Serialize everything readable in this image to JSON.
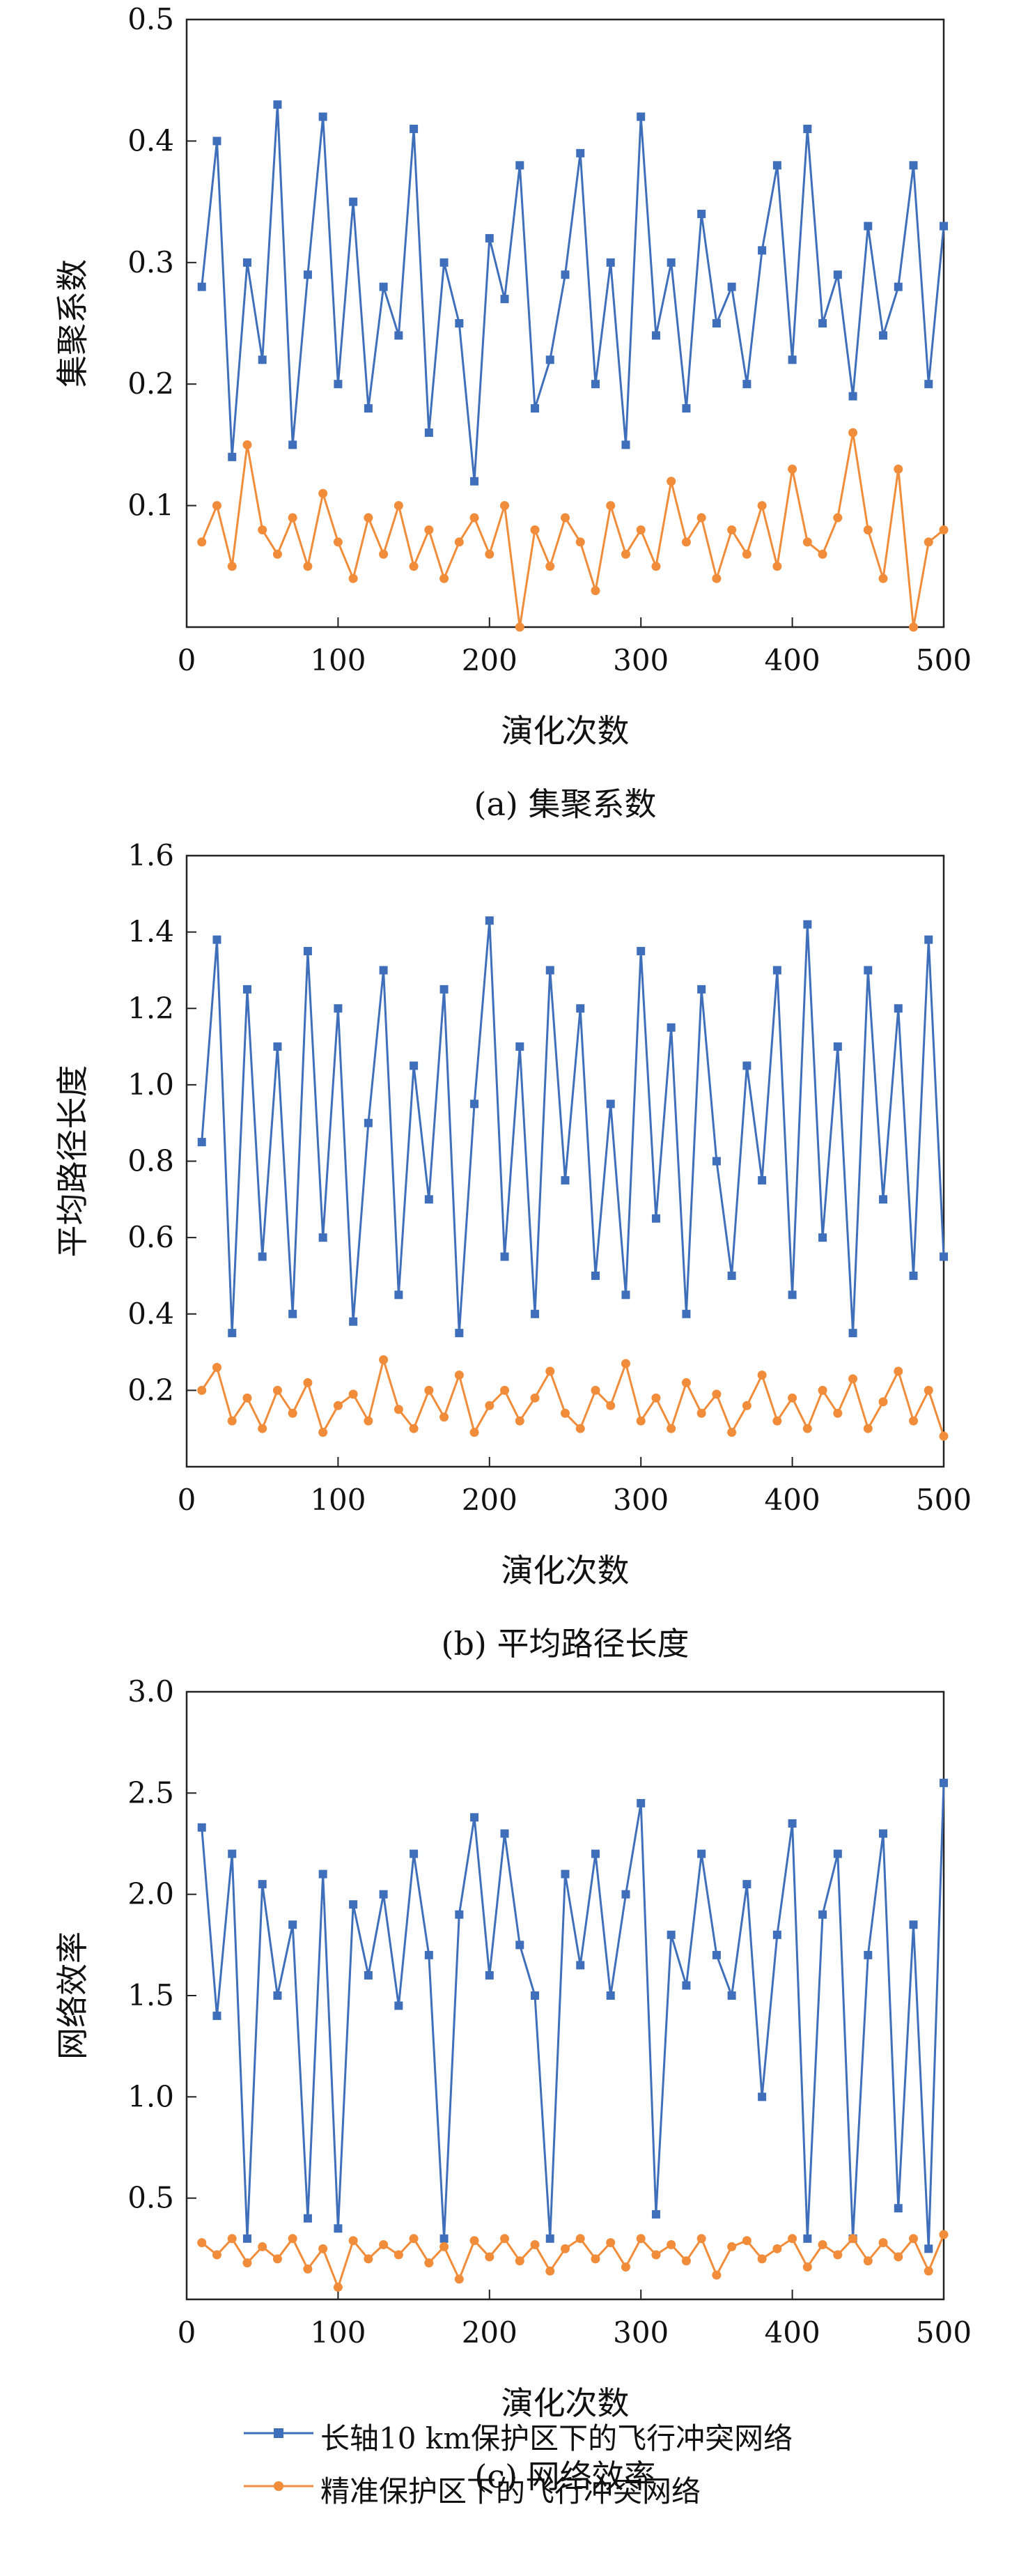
{
  "colors": {
    "blue": "#3f6fba",
    "orange": "#f08c3a"
  },
  "legend": {
    "series1": "长轴10 km保护区下的飞行冲突网络",
    "series2": "精准保护区下的飞行冲突网络"
  },
  "chart_data": [
    {
      "type": "line",
      "caption": "(a) 集聚系数",
      "xlabel": "演化次数",
      "ylabel": "集聚系数",
      "xlim": [
        0,
        500
      ],
      "ylim": [
        0,
        0.5
      ],
      "xticks": [
        "0",
        "100",
        "200",
        "300",
        "400",
        "500"
      ],
      "yticks": [
        "0.1",
        "0.2",
        "0.3",
        "0.4",
        "0.5"
      ],
      "series": [
        {
          "name": "长轴10 km保护区下的飞行冲突网络",
          "color": "blue",
          "marker": "square",
          "x": [
            10,
            20,
            30,
            40,
            50,
            60,
            70,
            80,
            90,
            100,
            110,
            120,
            130,
            140,
            150,
            160,
            170,
            180,
            190,
            200,
            210,
            220,
            230,
            240,
            250,
            260,
            270,
            280,
            290,
            300,
            310,
            320,
            330,
            340,
            350,
            360,
            370,
            380,
            390,
            400,
            410,
            420,
            430,
            440,
            450,
            460,
            470,
            480,
            490,
            500
          ],
          "y": [
            0.28,
            0.4,
            0.14,
            0.3,
            0.22,
            0.43,
            0.15,
            0.29,
            0.42,
            0.2,
            0.35,
            0.18,
            0.28,
            0.24,
            0.41,
            0.16,
            0.3,
            0.25,
            0.12,
            0.32,
            0.27,
            0.38,
            0.18,
            0.22,
            0.29,
            0.39,
            0.2,
            0.3,
            0.15,
            0.42,
            0.24,
            0.3,
            0.18,
            0.34,
            0.25,
            0.28,
            0.2,
            0.31,
            0.38,
            0.22,
            0.41,
            0.25,
            0.29,
            0.19,
            0.33,
            0.24,
            0.28,
            0.38,
            0.2,
            0.33
          ]
        },
        {
          "name": "精准保护区下的飞行冲突网络",
          "color": "orange",
          "marker": "circle",
          "x": [
            10,
            20,
            30,
            40,
            50,
            60,
            70,
            80,
            90,
            100,
            110,
            120,
            130,
            140,
            150,
            160,
            170,
            180,
            190,
            200,
            210,
            220,
            230,
            240,
            250,
            260,
            270,
            280,
            290,
            300,
            310,
            320,
            330,
            340,
            350,
            360,
            370,
            380,
            390,
            400,
            410,
            420,
            430,
            440,
            450,
            460,
            470,
            480,
            490,
            500
          ],
          "y": [
            0.07,
            0.1,
            0.05,
            0.15,
            0.08,
            0.06,
            0.09,
            0.05,
            0.11,
            0.07,
            0.04,
            0.09,
            0.06,
            0.1,
            0.05,
            0.08,
            0.04,
            0.07,
            0.09,
            0.06,
            0.1,
            0.0,
            0.08,
            0.05,
            0.09,
            0.07,
            0.03,
            0.1,
            0.06,
            0.08,
            0.05,
            0.12,
            0.07,
            0.09,
            0.04,
            0.08,
            0.06,
            0.1,
            0.05,
            0.13,
            0.07,
            0.06,
            0.09,
            0.16,
            0.08,
            0.04,
            0.13,
            0.0,
            0.07,
            0.08
          ]
        }
      ]
    },
    {
      "type": "line",
      "caption": "(b) 平均路径长度",
      "xlabel": "演化次数",
      "ylabel": "平均路径长度",
      "xlim": [
        0,
        500
      ],
      "ylim": [
        0,
        1.6
      ],
      "xticks": [
        "0",
        "100",
        "200",
        "300",
        "400",
        "500"
      ],
      "yticks": [
        "0.2",
        "0.4",
        "0.6",
        "0.8",
        "1.0",
        "1.2",
        "1.4",
        "1.6"
      ],
      "series": [
        {
          "name": "长轴10 km保护区下的飞行冲突网络",
          "color": "blue",
          "marker": "square",
          "x": [
            10,
            20,
            30,
            40,
            50,
            60,
            70,
            80,
            90,
            100,
            110,
            120,
            130,
            140,
            150,
            160,
            170,
            180,
            190,
            200,
            210,
            220,
            230,
            240,
            250,
            260,
            270,
            280,
            290,
            300,
            310,
            320,
            330,
            340,
            350,
            360,
            370,
            380,
            390,
            400,
            410,
            420,
            430,
            440,
            450,
            460,
            470,
            480,
            490,
            500
          ],
          "y": [
            0.85,
            1.38,
            0.35,
            1.25,
            0.55,
            1.1,
            0.4,
            1.35,
            0.6,
            1.2,
            0.38,
            0.9,
            1.3,
            0.45,
            1.05,
            0.7,
            1.25,
            0.35,
            0.95,
            1.43,
            0.55,
            1.1,
            0.4,
            1.3,
            0.75,
            1.2,
            0.5,
            0.95,
            0.45,
            1.35,
            0.65,
            1.15,
            0.4,
            1.25,
            0.8,
            0.5,
            1.05,
            0.75,
            1.3,
            0.45,
            1.42,
            0.6,
            1.1,
            0.35,
            1.3,
            0.7,
            1.2,
            0.5,
            1.38,
            0.55
          ]
        },
        {
          "name": "精准保护区下的飞行冲突网络",
          "color": "orange",
          "marker": "circle",
          "x": [
            10,
            20,
            30,
            40,
            50,
            60,
            70,
            80,
            90,
            100,
            110,
            120,
            130,
            140,
            150,
            160,
            170,
            180,
            190,
            200,
            210,
            220,
            230,
            240,
            250,
            260,
            270,
            280,
            290,
            300,
            310,
            320,
            330,
            340,
            350,
            360,
            370,
            380,
            390,
            400,
            410,
            420,
            430,
            440,
            450,
            460,
            470,
            480,
            490,
            500
          ],
          "y": [
            0.2,
            0.26,
            0.12,
            0.18,
            0.1,
            0.2,
            0.14,
            0.22,
            0.09,
            0.16,
            0.19,
            0.12,
            0.28,
            0.15,
            0.1,
            0.2,
            0.13,
            0.24,
            0.09,
            0.16,
            0.2,
            0.12,
            0.18,
            0.25,
            0.14,
            0.1,
            0.2,
            0.16,
            0.27,
            0.12,
            0.18,
            0.1,
            0.22,
            0.14,
            0.19,
            0.09,
            0.16,
            0.24,
            0.12,
            0.18,
            0.1,
            0.2,
            0.14,
            0.23,
            0.1,
            0.17,
            0.25,
            0.12,
            0.2,
            0.08
          ]
        }
      ]
    },
    {
      "type": "line",
      "caption": "(c) 网络效率",
      "xlabel": "演化次数",
      "ylabel": "网络效率",
      "xlim": [
        0,
        500
      ],
      "ylim": [
        0,
        3.0
      ],
      "xticks": [
        "0",
        "100",
        "200",
        "300",
        "400",
        "500"
      ],
      "yticks": [
        "0.5",
        "1.0",
        "1.5",
        "2.0",
        "2.5",
        "3.0"
      ],
      "series": [
        {
          "name": "长轴10 km保护区下的飞行冲突网络",
          "color": "blue",
          "marker": "square",
          "x": [
            10,
            20,
            30,
            40,
            50,
            60,
            70,
            80,
            90,
            100,
            110,
            120,
            130,
            140,
            150,
            160,
            170,
            180,
            190,
            200,
            210,
            220,
            230,
            240,
            250,
            260,
            270,
            280,
            290,
            300,
            310,
            320,
            330,
            340,
            350,
            360,
            370,
            380,
            390,
            400,
            410,
            420,
            430,
            440,
            450,
            460,
            470,
            480,
            490,
            500
          ],
          "y": [
            2.33,
            1.4,
            2.2,
            0.3,
            2.05,
            1.5,
            1.85,
            0.4,
            2.1,
            0.35,
            1.95,
            1.6,
            2.0,
            1.45,
            2.2,
            1.7,
            0.3,
            1.9,
            2.38,
            1.6,
            2.3,
            1.75,
            1.5,
            0.3,
            2.1,
            1.65,
            2.2,
            1.5,
            2.0,
            2.45,
            0.42,
            1.8,
            1.55,
            2.2,
            1.7,
            1.5,
            2.05,
            1.0,
            1.8,
            2.35,
            0.3,
            1.9,
            2.2,
            0.3,
            1.7,
            2.3,
            0.45,
            1.85,
            0.25,
            2.55
          ]
        },
        {
          "name": "精准保护区下的飞行冲突网络",
          "color": "orange",
          "marker": "circle",
          "x": [
            10,
            20,
            30,
            40,
            50,
            60,
            70,
            80,
            90,
            100,
            110,
            120,
            130,
            140,
            150,
            160,
            170,
            180,
            190,
            200,
            210,
            220,
            230,
            240,
            250,
            260,
            270,
            280,
            290,
            300,
            310,
            320,
            330,
            340,
            350,
            360,
            370,
            380,
            390,
            400,
            410,
            420,
            430,
            440,
            450,
            460,
            470,
            480,
            490,
            500
          ],
          "y": [
            0.28,
            0.22,
            0.3,
            0.18,
            0.26,
            0.2,
            0.3,
            0.15,
            0.25,
            0.06,
            0.29,
            0.2,
            0.27,
            0.22,
            0.3,
            0.18,
            0.26,
            0.1,
            0.29,
            0.21,
            0.3,
            0.19,
            0.27,
            0.14,
            0.25,
            0.3,
            0.2,
            0.28,
            0.16,
            0.3,
            0.22,
            0.27,
            0.19,
            0.3,
            0.12,
            0.26,
            0.29,
            0.2,
            0.25,
            0.3,
            0.16,
            0.27,
            0.22,
            0.3,
            0.19,
            0.28,
            0.21,
            0.3,
            0.14,
            0.32
          ]
        }
      ]
    }
  ]
}
